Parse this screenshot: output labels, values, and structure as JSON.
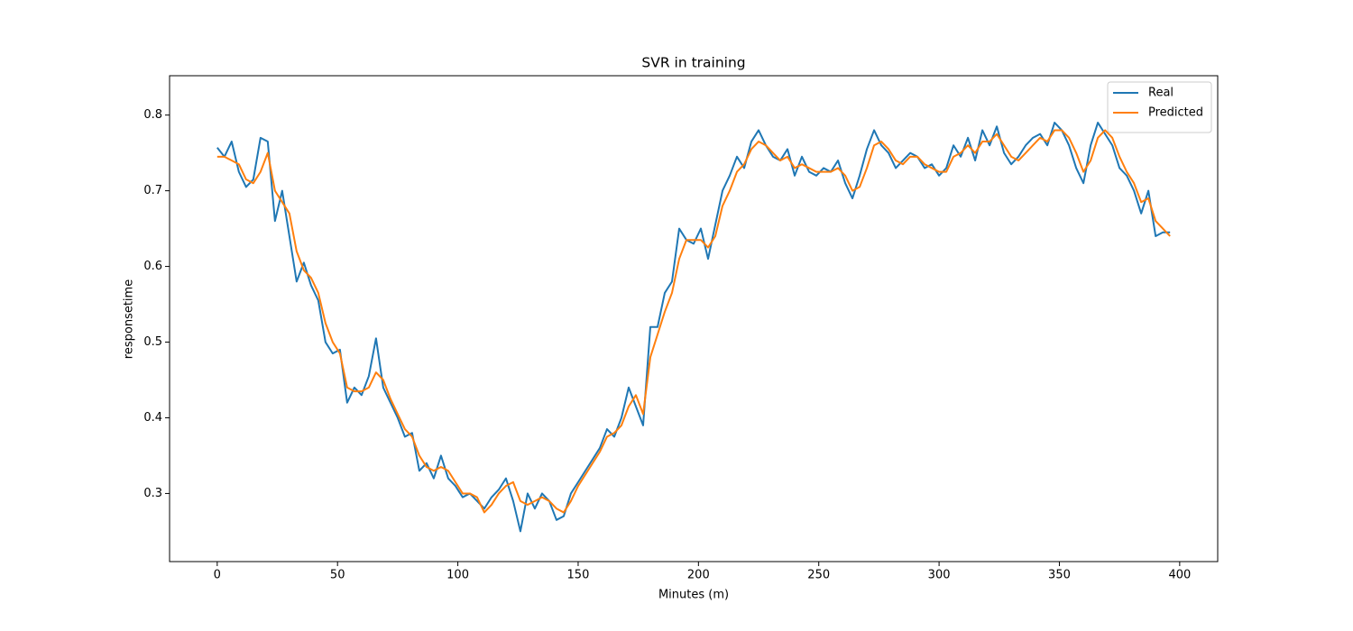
{
  "chart_data": {
    "type": "line",
    "title": "SVR in training",
    "x_label": "Minutes (m)",
    "y_label": "responsetime",
    "x": [
      0,
      3,
      6,
      9,
      12,
      15,
      18,
      21,
      24,
      27,
      30,
      33,
      36,
      39,
      42,
      45,
      48,
      51,
      54,
      57,
      60,
      63,
      66,
      69,
      72,
      75,
      78,
      81,
      84,
      87,
      90,
      93,
      96,
      99,
      102,
      105,
      108,
      111,
      114,
      117,
      120,
      123,
      126,
      129,
      132,
      135,
      138,
      141,
      144,
      147,
      150,
      153,
      156,
      159,
      162,
      165,
      168,
      171,
      174,
      177,
      180,
      183,
      186,
      189,
      192,
      195,
      198,
      201,
      204,
      207,
      210,
      213,
      216,
      219,
      222,
      225,
      228,
      231,
      234,
      237,
      240,
      243,
      246,
      249,
      252,
      255,
      258,
      261,
      264,
      267,
      270,
      273,
      276,
      279,
      282,
      285,
      288,
      291,
      294,
      297,
      300,
      303,
      306,
      309,
      312,
      315,
      318,
      321,
      324,
      327,
      330,
      333,
      336,
      339,
      342,
      345,
      348,
      351,
      354,
      357,
      360,
      363,
      366,
      369,
      372,
      375,
      378,
      381,
      384,
      387,
      390,
      393,
      396
    ],
    "series": [
      {
        "name": "Real",
        "color": "#1f77b4",
        "values": [
          0.757,
          0.745,
          0.765,
          0.725,
          0.705,
          0.715,
          0.77,
          0.765,
          0.66,
          0.7,
          0.64,
          0.58,
          0.605,
          0.575,
          0.555,
          0.5,
          0.485,
          0.49,
          0.42,
          0.44,
          0.43,
          0.455,
          0.505,
          0.44,
          0.42,
          0.4,
          0.375,
          0.38,
          0.33,
          0.34,
          0.32,
          0.35,
          0.32,
          0.31,
          0.295,
          0.3,
          0.29,
          0.28,
          0.295,
          0.305,
          0.32,
          0.29,
          0.25,
          0.3,
          0.28,
          0.3,
          0.29,
          0.265,
          0.27,
          0.3,
          0.315,
          0.33,
          0.345,
          0.36,
          0.385,
          0.375,
          0.4,
          0.44,
          0.415,
          0.39,
          0.52,
          0.52,
          0.565,
          0.58,
          0.65,
          0.635,
          0.63,
          0.65,
          0.61,
          0.655,
          0.7,
          0.72,
          0.745,
          0.73,
          0.765,
          0.78,
          0.76,
          0.745,
          0.74,
          0.755,
          0.72,
          0.745,
          0.725,
          0.72,
          0.73,
          0.725,
          0.74,
          0.71,
          0.69,
          0.72,
          0.755,
          0.78,
          0.76,
          0.75,
          0.73,
          0.74,
          0.75,
          0.745,
          0.73,
          0.735,
          0.72,
          0.73,
          0.76,
          0.745,
          0.77,
          0.74,
          0.78,
          0.76,
          0.785,
          0.75,
          0.735,
          0.745,
          0.76,
          0.77,
          0.775,
          0.76,
          0.79,
          0.78,
          0.76,
          0.73,
          0.71,
          0.76,
          0.79,
          0.775,
          0.76,
          0.73,
          0.72,
          0.7,
          0.67,
          0.7,
          0.64,
          0.645,
          0.645
        ]
      },
      {
        "name": "Predicted",
        "color": "#ff7f0e",
        "values": [
          0.745,
          0.745,
          0.74,
          0.735,
          0.715,
          0.71,
          0.725,
          0.75,
          0.7,
          0.685,
          0.67,
          0.62,
          0.595,
          0.585,
          0.565,
          0.525,
          0.5,
          0.485,
          0.44,
          0.435,
          0.435,
          0.44,
          0.46,
          0.45,
          0.425,
          0.405,
          0.385,
          0.375,
          0.35,
          0.335,
          0.33,
          0.335,
          0.33,
          0.315,
          0.3,
          0.3,
          0.295,
          0.275,
          0.285,
          0.3,
          0.31,
          0.315,
          0.29,
          0.285,
          0.29,
          0.295,
          0.29,
          0.28,
          0.275,
          0.29,
          0.31,
          0.325,
          0.34,
          0.355,
          0.375,
          0.38,
          0.39,
          0.415,
          0.43,
          0.405,
          0.48,
          0.51,
          0.54,
          0.565,
          0.61,
          0.635,
          0.635,
          0.635,
          0.625,
          0.64,
          0.68,
          0.7,
          0.725,
          0.735,
          0.755,
          0.765,
          0.76,
          0.75,
          0.74,
          0.745,
          0.73,
          0.735,
          0.73,
          0.725,
          0.725,
          0.725,
          0.73,
          0.72,
          0.7,
          0.705,
          0.73,
          0.76,
          0.765,
          0.755,
          0.74,
          0.735,
          0.745,
          0.745,
          0.735,
          0.73,
          0.725,
          0.725,
          0.745,
          0.75,
          0.76,
          0.75,
          0.765,
          0.765,
          0.775,
          0.76,
          0.745,
          0.74,
          0.75,
          0.76,
          0.77,
          0.765,
          0.78,
          0.78,
          0.77,
          0.75,
          0.725,
          0.74,
          0.77,
          0.78,
          0.77,
          0.745,
          0.725,
          0.71,
          0.685,
          0.69,
          0.66,
          0.65,
          0.64
        ]
      }
    ],
    "xlim": [
      -19.8,
      415.8
    ],
    "xticks": [
      0,
      50,
      100,
      150,
      200,
      250,
      300,
      350,
      400
    ],
    "ylim": [
      0.21,
      0.852
    ],
    "yticks": [
      0.3,
      0.4,
      0.5,
      0.6,
      0.7,
      0.8
    ],
    "grid": false,
    "legend": "upper right"
  }
}
